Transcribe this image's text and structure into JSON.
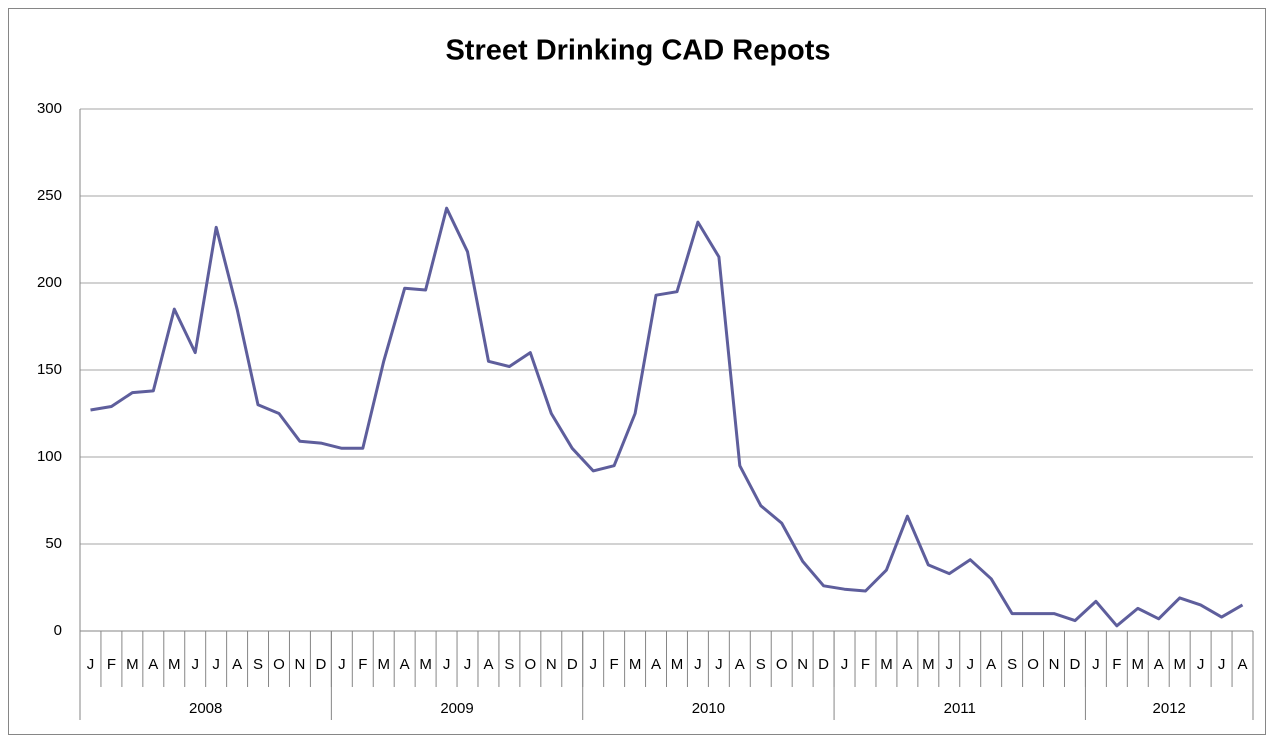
{
  "chart_data": {
    "type": "line",
    "title": "Street Drinking CAD Repots",
    "categories": [
      "J",
      "F",
      "M",
      "A",
      "M",
      "J",
      "J",
      "A",
      "S",
      "O",
      "N",
      "D",
      "J",
      "F",
      "M",
      "A",
      "M",
      "J",
      "J",
      "A",
      "S",
      "O",
      "N",
      "D",
      "J",
      "F",
      "M",
      "A",
      "M",
      "J",
      "J",
      "A",
      "S",
      "O",
      "N",
      "D",
      "J",
      "F",
      "M",
      "A",
      "M",
      "J",
      "J",
      "A",
      "S",
      "O",
      "N",
      "D",
      "J",
      "F",
      "M",
      "A",
      "M",
      "J",
      "J",
      "A"
    ],
    "year_groups": [
      {
        "label": "2008",
        "months": 12
      },
      {
        "label": "2009",
        "months": 12
      },
      {
        "label": "2010",
        "months": 12
      },
      {
        "label": "2011",
        "months": 12
      },
      {
        "label": "2012",
        "months": 8
      }
    ],
    "series": [
      {
        "color": "#5e5e9c",
        "values": [
          127,
          129,
          137,
          138,
          185,
          160,
          232,
          185,
          130,
          125,
          109,
          108,
          105,
          105,
          155,
          197,
          196,
          243,
          218,
          155,
          152,
          160,
          125,
          105,
          92,
          95,
          125,
          193,
          195,
          235,
          215,
          95,
          72,
          62,
          40,
          26,
          24,
          23,
          35,
          66,
          38,
          33,
          41,
          30,
          10,
          10,
          10,
          6,
          17,
          3,
          13,
          7,
          19,
          15,
          8,
          15
        ]
      }
    ],
    "ylim": [
      0,
      300
    ],
    "yticks": [
      0,
      50,
      100,
      150,
      200,
      250,
      300
    ],
    "grid": true
  }
}
